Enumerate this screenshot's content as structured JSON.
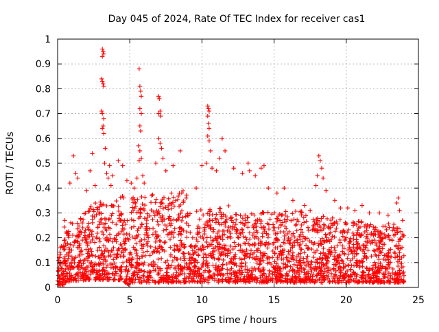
{
  "chart_data": {
    "type": "scatter",
    "title": "Day 045 of 2024, Rate Of TEC Index for receiver cas1",
    "xlabel": "GPS time / hours",
    "ylabel": "ROTI / TECUs",
    "xlim": [
      0,
      25
    ],
    "ylim": [
      0,
      1
    ],
    "xticks": [
      0,
      5,
      10,
      15,
      20,
      25
    ],
    "xtick_labels": [
      "0",
      "5",
      "10",
      "15",
      "20",
      "25"
    ],
    "yticks": [
      0,
      0.1,
      0.2,
      0.3,
      0.4,
      0.5,
      0.6,
      0.7,
      0.8,
      0.9,
      1
    ],
    "ytick_labels": [
      "0",
      "0.1",
      "0.2",
      "0.3",
      "0.4",
      "0.5",
      "0.6",
      "0.7",
      "0.8",
      "0.9",
      "1"
    ],
    "grid": true,
    "marker": "+",
    "color": "#ff0000",
    "series": [
      {
        "name": "ROTI",
        "points": [
          [
            3.1,
            0.96
          ],
          [
            3.15,
            0.95
          ],
          [
            3.2,
            0.94
          ],
          [
            3.1,
            0.93
          ],
          [
            3.05,
            0.84
          ],
          [
            3.1,
            0.83
          ],
          [
            3.15,
            0.82
          ],
          [
            3.2,
            0.81
          ],
          [
            3.05,
            0.71
          ],
          [
            3.1,
            0.7
          ],
          [
            3.2,
            0.68
          ],
          [
            3.15,
            0.65
          ],
          [
            3.1,
            0.64
          ],
          [
            3.2,
            0.62
          ],
          [
            3.3,
            0.56
          ],
          [
            3.25,
            0.5
          ],
          [
            3.4,
            0.46
          ],
          [
            3.5,
            0.44
          ],
          [
            3.6,
            0.49
          ],
          [
            3.7,
            0.41
          ],
          [
            3.8,
            0.45
          ],
          [
            5.65,
            0.88
          ],
          [
            5.7,
            0.81
          ],
          [
            5.75,
            0.79
          ],
          [
            5.8,
            0.77
          ],
          [
            5.7,
            0.72
          ],
          [
            5.8,
            0.7
          ],
          [
            5.7,
            0.65
          ],
          [
            5.75,
            0.63
          ],
          [
            5.6,
            0.57
          ],
          [
            5.7,
            0.55
          ],
          [
            5.8,
            0.52
          ],
          [
            5.65,
            0.51
          ],
          [
            5.9,
            0.45
          ],
          [
            5.5,
            0.44
          ],
          [
            6.0,
            0.42
          ],
          [
            7.0,
            0.77
          ],
          [
            7.05,
            0.76
          ],
          [
            7.1,
            0.71
          ],
          [
            7.0,
            0.7
          ],
          [
            7.15,
            0.69
          ],
          [
            7.0,
            0.6
          ],
          [
            7.1,
            0.58
          ],
          [
            7.2,
            0.56
          ],
          [
            7.3,
            0.52
          ],
          [
            6.8,
            0.5
          ],
          [
            7.5,
            0.47
          ],
          [
            8.5,
            0.55
          ],
          [
            8.0,
            0.49
          ],
          [
            8.6,
            0.38
          ],
          [
            8.9,
            0.36
          ],
          [
            10.4,
            0.73
          ],
          [
            10.45,
            0.72
          ],
          [
            10.5,
            0.71
          ],
          [
            10.4,
            0.69
          ],
          [
            10.45,
            0.66
          ],
          [
            10.5,
            0.64
          ],
          [
            10.4,
            0.61
          ],
          [
            10.5,
            0.59
          ],
          [
            10.6,
            0.55
          ],
          [
            10.3,
            0.5
          ],
          [
            10.7,
            0.48
          ],
          [
            11.4,
            0.6
          ],
          [
            11.6,
            0.55
          ],
          [
            11.2,
            0.52
          ],
          [
            10.0,
            0.49
          ],
          [
            11.0,
            0.47
          ],
          [
            9.6,
            0.4
          ],
          [
            1.1,
            0.53
          ],
          [
            1.25,
            0.46
          ],
          [
            1.4,
            0.44
          ],
          [
            0.85,
            0.42
          ],
          [
            0.5,
            0.27
          ],
          [
            0.2,
            0.16
          ],
          [
            0.1,
            0.12
          ],
          [
            2.4,
            0.54
          ],
          [
            2.25,
            0.47
          ],
          [
            2.6,
            0.41
          ],
          [
            2.0,
            0.39
          ],
          [
            4.2,
            0.51
          ],
          [
            4.5,
            0.49
          ],
          [
            4.8,
            0.43
          ],
          [
            5.1,
            0.42
          ],
          [
            5.3,
            0.4
          ],
          [
            12.2,
            0.48
          ],
          [
            12.8,
            0.46
          ],
          [
            13.2,
            0.5
          ],
          [
            13.3,
            0.47
          ],
          [
            13.7,
            0.45
          ],
          [
            14.1,
            0.48
          ],
          [
            14.3,
            0.49
          ],
          [
            14.6,
            0.4
          ],
          [
            15.2,
            0.38
          ],
          [
            15.7,
            0.4
          ],
          [
            16.3,
            0.35
          ],
          [
            17.1,
            0.33
          ],
          [
            17.5,
            0.31
          ],
          [
            18.1,
            0.53
          ],
          [
            18.2,
            0.51
          ],
          [
            18.3,
            0.48
          ],
          [
            18.0,
            0.45
          ],
          [
            18.4,
            0.44
          ],
          [
            17.9,
            0.41
          ],
          [
            18.6,
            0.39
          ],
          [
            19.2,
            0.35
          ],
          [
            19.6,
            0.32
          ],
          [
            20.1,
            0.32
          ],
          [
            20.6,
            0.31
          ],
          [
            21.1,
            0.33
          ],
          [
            21.6,
            0.3
          ],
          [
            22.3,
            0.3
          ],
          [
            22.9,
            0.29
          ],
          [
            23.5,
            0.34
          ],
          [
            23.6,
            0.36
          ],
          [
            23.7,
            0.31
          ],
          [
            23.9,
            0.27
          ]
        ]
      }
    ],
    "bands": [
      {
        "x": [
          0.0,
          0.5
        ],
        "ymin": [
          0.01,
          0.01
        ],
        "ymax": [
          0.1,
          0.26
        ]
      },
      {
        "x": [
          0.5,
          2.0
        ],
        "ymin": [
          0.02,
          0.03
        ],
        "ymax": [
          0.26,
          0.31
        ]
      },
      {
        "x": [
          2.0,
          4.6
        ],
        "ymin": [
          0.03,
          0.03
        ],
        "ymax": [
          0.33,
          0.37
        ]
      },
      {
        "x": [
          4.6,
          5.0
        ],
        "ymin": [
          0.02,
          0.01
        ],
        "ymax": [
          0.33,
          0.25
        ]
      },
      {
        "x": [
          5.0,
          9.2
        ],
        "ymin": [
          0.02,
          0.02
        ],
        "ymax": [
          0.36,
          0.4
        ]
      },
      {
        "x": [
          9.2,
          9.6
        ],
        "ymin": [
          0.02,
          0.02
        ],
        "ymax": [
          0.2,
          0.2
        ]
      },
      {
        "x": [
          9.6,
          12.0
        ],
        "ymin": [
          0.02,
          0.02
        ],
        "ymax": [
          0.31,
          0.33
        ]
      },
      {
        "x": [
          12.0,
          18.0
        ],
        "ymin": [
          0.02,
          0.02
        ],
        "ymax": [
          0.3,
          0.31
        ]
      },
      {
        "x": [
          18.0,
          24.0
        ],
        "ymin": [
          0.02,
          0.02
        ],
        "ymax": [
          0.29,
          0.25
        ]
      }
    ]
  }
}
